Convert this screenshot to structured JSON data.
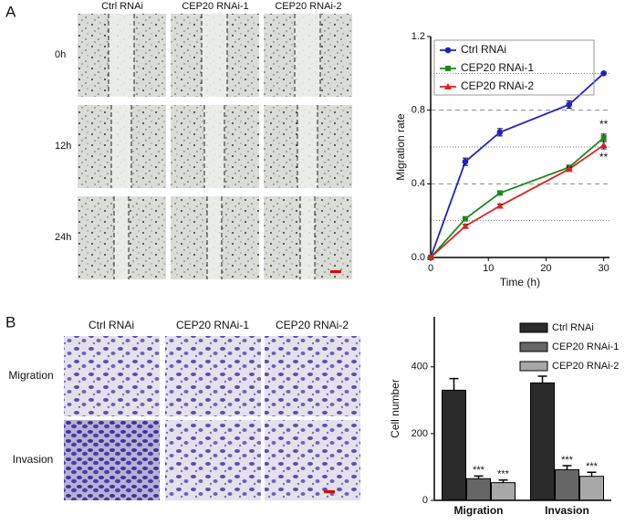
{
  "figure": {
    "panel_labels": [
      "A",
      "B"
    ]
  },
  "images_a": {
    "columns": [
      "Ctrl RNAi",
      "CEP20 RNAi-1",
      "CEP20 RNAi-2"
    ],
    "rows": [
      "0h",
      "12h",
      "24h"
    ]
  },
  "images_b": {
    "columns": [
      "Ctrl RNAi",
      "CEP20 RNAi-1",
      "CEP20 RNAi-2"
    ],
    "rows": [
      "Migration",
      "Invasion"
    ]
  },
  "chart_data": [
    {
      "type": "line",
      "xlabel": "Time (h)",
      "ylabel": "Migration rate",
      "x": [
        0,
        6,
        12,
        24,
        30
      ],
      "series": [
        {
          "name": "Ctrl RNAi",
          "color": "#2020c8",
          "marker": "circle",
          "values": [
            0,
            0.52,
            0.68,
            0.83,
            1.0
          ],
          "errors": [
            0,
            0.02,
            0.02,
            0.02,
            0.005
          ]
        },
        {
          "name": "CEP20 RNAi-1",
          "color": "#1a8a1a",
          "marker": "square",
          "values": [
            0,
            0.21,
            0.35,
            0.49,
            0.65
          ],
          "errors": [
            0,
            0.01,
            0.01,
            0.01,
            0.02
          ]
        },
        {
          "name": "CEP20 RNAi-2",
          "color": "#e02020",
          "marker": "triangle",
          "values": [
            0,
            0.17,
            0.28,
            0.48,
            0.61
          ],
          "errors": [
            0,
            0.01,
            0.01,
            0.01,
            0.02
          ]
        }
      ],
      "annotations": [
        "**",
        "**"
      ],
      "xlim": [
        0,
        31
      ],
      "xticks": [
        0,
        10,
        20,
        30
      ],
      "ylim": [
        0,
        1.2
      ],
      "yticks": [
        {
          "value": 0,
          "label": "0.0"
        },
        0.4,
        0.8,
        1.2
      ],
      "minor_yticks": [
        0.2,
        0.6,
        1.0
      ],
      "grid": true,
      "legend": "upper left"
    },
    {
      "type": "bar",
      "ylabel": "Cell number",
      "categories": [
        "Migration",
        "Invasion"
      ],
      "series": [
        {
          "name": "Ctrl RNAi",
          "color": "#2b2b2b",
          "values": [
            330,
            352
          ],
          "errors": [
            35,
            20
          ]
        },
        {
          "name": "CEP20 RNAi-1",
          "color": "#666666",
          "values": [
            65,
            92
          ],
          "errors": [
            8,
            12
          ],
          "significance": [
            "***",
            "***"
          ]
        },
        {
          "name": "CEP20 RNAi-2",
          "color": "#a8a8a8",
          "values": [
            53,
            72
          ],
          "errors": [
            8,
            12
          ],
          "significance": [
            "***",
            "***"
          ]
        }
      ],
      "ylim": [
        0,
        550
      ],
      "yticks": [
        0,
        200,
        400
      ],
      "legend": "upper right"
    }
  ]
}
